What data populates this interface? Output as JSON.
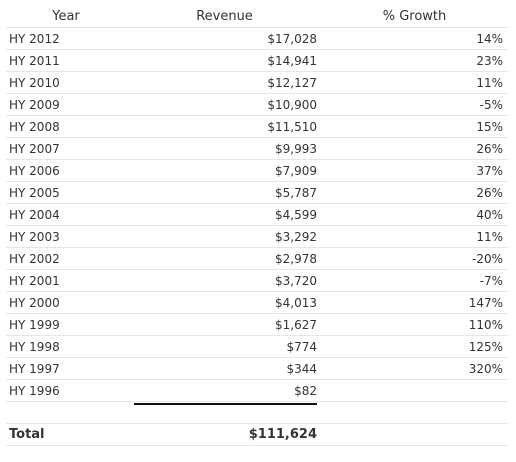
{
  "headers": {
    "year": "Year",
    "revenue": "Revenue",
    "growth": "% Growth"
  },
  "rows": [
    {
      "year": "HY 2012",
      "revenue": "$17,028",
      "growth": "14%"
    },
    {
      "year": "HY 2011",
      "revenue": "$14,941",
      "growth": "23%"
    },
    {
      "year": "HY 2010",
      "revenue": "$12,127",
      "growth": "11%"
    },
    {
      "year": "HY 2009",
      "revenue": "$10,900",
      "growth": "-5%"
    },
    {
      "year": "HY 2008",
      "revenue": "$11,510",
      "growth": "15%"
    },
    {
      "year": "HY 2007",
      "revenue": "$9,993",
      "growth": "26%"
    },
    {
      "year": "HY 2006",
      "revenue": "$7,909",
      "growth": "37%"
    },
    {
      "year": "HY 2005",
      "revenue": "$5,787",
      "growth": "26%"
    },
    {
      "year": "HY 2004",
      "revenue": "$4,599",
      "growth": "40%"
    },
    {
      "year": "HY 2003",
      "revenue": "$3,292",
      "growth": "11%"
    },
    {
      "year": "HY 2002",
      "revenue": "$2,978",
      "growth": "-20%"
    },
    {
      "year": "HY 2001",
      "revenue": "$3,720",
      "growth": "-7%"
    },
    {
      "year": "HY 2000",
      "revenue": "$4,013",
      "growth": "147%"
    },
    {
      "year": "HY 1999",
      "revenue": "$1,627",
      "growth": "110%"
    },
    {
      "year": "HY 1998",
      "revenue": "$774",
      "growth": "125%"
    },
    {
      "year": "HY 1997",
      "revenue": "$344",
      "growth": "320%"
    },
    {
      "year": "HY 1996",
      "revenue": "$82",
      "growth": ""
    }
  ],
  "total": {
    "label": "Total",
    "revenue": "$111,624"
  }
}
